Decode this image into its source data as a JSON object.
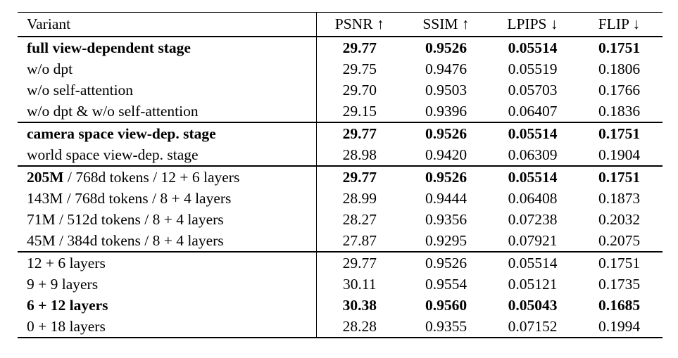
{
  "table": {
    "title": "ablation-study-table",
    "columns": [
      "Variant",
      "PSNR ↑",
      "SSIM ↑",
      "LPIPS ↓",
      "FLIP ↓"
    ],
    "sections": [
      {
        "rows": [
          {
            "variant_bold": "full view-dependent stage",
            "variant_regular": "",
            "values_bold": true,
            "values": [
              "29.77",
              "0.9526",
              "0.05514",
              "0.1751"
            ]
          },
          {
            "variant_bold": "",
            "variant_regular": "w/o dpt",
            "values_bold": false,
            "values": [
              "29.75",
              "0.9476",
              "0.05519",
              "0.1806"
            ]
          },
          {
            "variant_bold": "",
            "variant_regular": "w/o self-attention",
            "values_bold": false,
            "values": [
              "29.70",
              "0.9503",
              "0.05703",
              "0.1766"
            ]
          },
          {
            "variant_bold": "",
            "variant_regular": "w/o dpt & w/o self-attention",
            "values_bold": false,
            "values": [
              "29.15",
              "0.9396",
              "0.06407",
              "0.1836"
            ]
          }
        ]
      },
      {
        "rows": [
          {
            "variant_bold": "camera space view-dep. stage",
            "variant_regular": "",
            "values_bold": true,
            "values": [
              "29.77",
              "0.9526",
              "0.05514",
              "0.1751"
            ]
          },
          {
            "variant_bold": "",
            "variant_regular": "world space view-dep. stage",
            "values_bold": false,
            "values": [
              "28.98",
              "0.9420",
              "0.06309",
              "0.1904"
            ]
          }
        ]
      },
      {
        "rows": [
          {
            "variant_bold": "205M",
            "variant_regular": " / 768d tokens / 12 + 6 layers",
            "values_bold": true,
            "values": [
              "29.77",
              "0.9526",
              "0.05514",
              "0.1751"
            ]
          },
          {
            "variant_bold": "",
            "variant_regular": "143M / 768d tokens / 8 + 4 layers",
            "values_bold": false,
            "values": [
              "28.99",
              "0.9444",
              "0.06408",
              "0.1873"
            ]
          },
          {
            "variant_bold": "",
            "variant_regular": "71M / 512d tokens / 8 + 4 layers",
            "values_bold": false,
            "values": [
              "28.27",
              "0.9356",
              "0.07238",
              "0.2032"
            ]
          },
          {
            "variant_bold": "",
            "variant_regular": "45M / 384d tokens / 8 + 4 layers",
            "values_bold": false,
            "values": [
              "27.87",
              "0.9295",
              "0.07921",
              "0.2075"
            ]
          }
        ]
      },
      {
        "rows": [
          {
            "variant_bold": "",
            "variant_regular": "12 + 6 layers",
            "values_bold": false,
            "values": [
              "29.77",
              "0.9526",
              "0.05514",
              "0.1751"
            ]
          },
          {
            "variant_bold": "",
            "variant_regular": "9 + 9 layers",
            "values_bold": false,
            "values": [
              "30.11",
              "0.9554",
              "0.05121",
              "0.1735"
            ]
          },
          {
            "variant_bold": "6 + 12 layers",
            "variant_regular": "",
            "values_bold": true,
            "values": [
              "30.38",
              "0.9560",
              "0.05043",
              "0.1685"
            ]
          },
          {
            "variant_bold": "",
            "variant_regular": "0 + 18 layers",
            "values_bold": false,
            "values": [
              "28.28",
              "0.9355",
              "0.07152",
              "0.1994"
            ]
          }
        ]
      }
    ]
  }
}
